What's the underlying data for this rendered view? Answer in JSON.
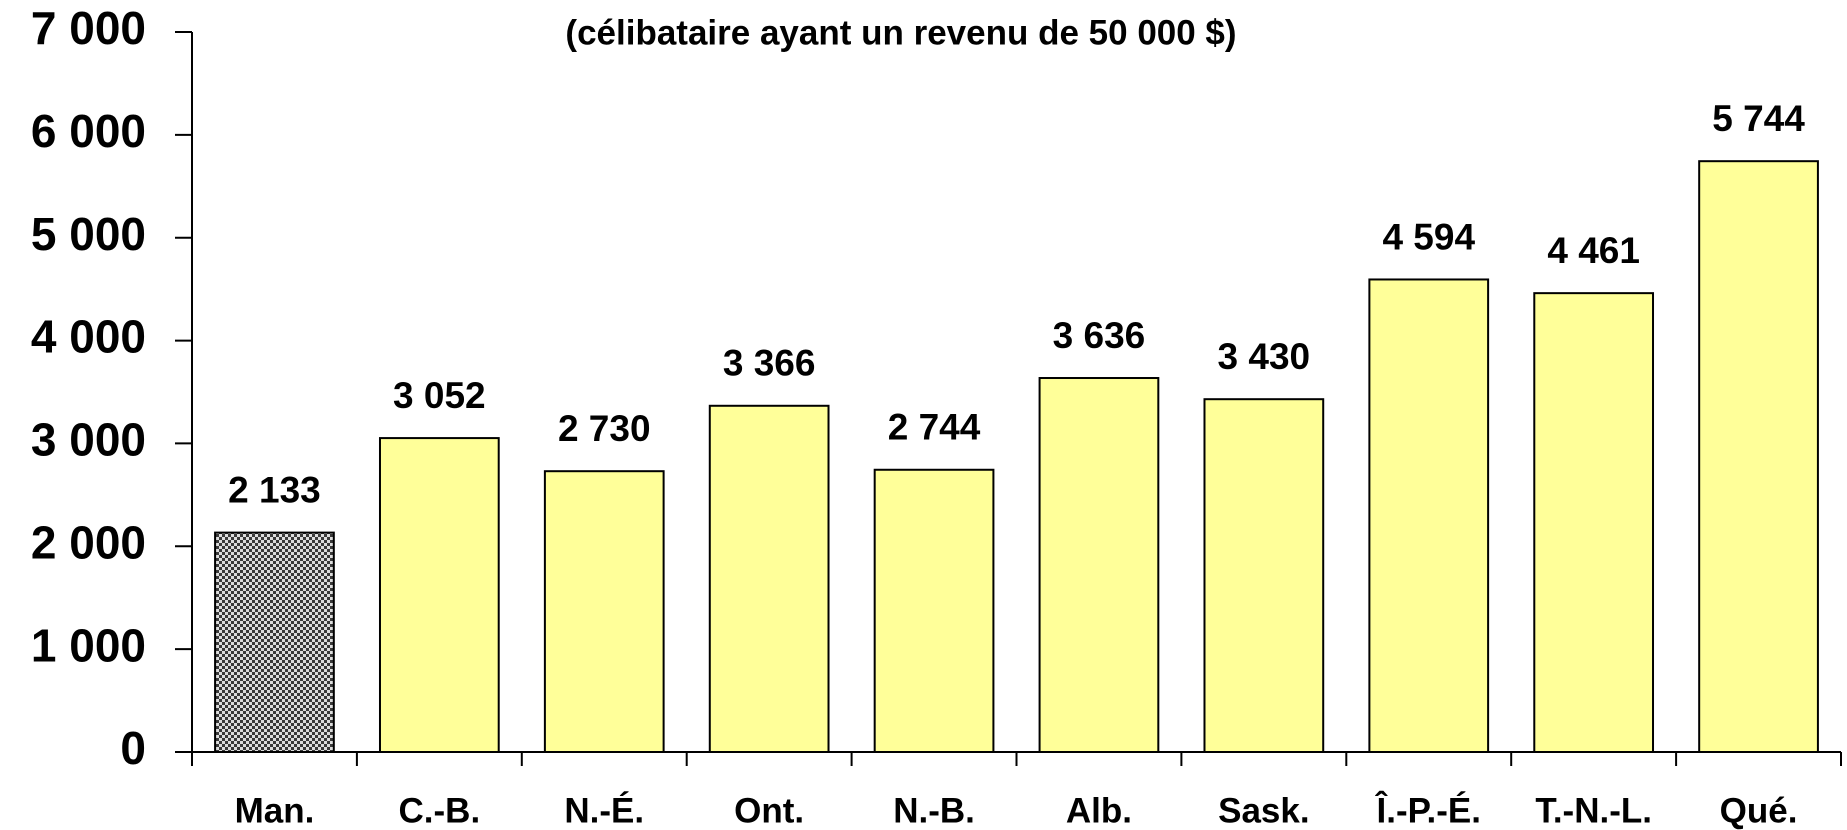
{
  "chart_data": {
    "type": "bar",
    "title": "(célibataire ayant un revenu de 50 000 $)",
    "categories": [
      "Man.",
      "C.-B.",
      "N.-É.",
      "Ont.",
      "N.-B.",
      "Alb.",
      "Sask.",
      "Î.-P.-É.",
      "T.-N.-L.",
      "Qué."
    ],
    "values": [
      2133,
      3052,
      2730,
      3366,
      2744,
      3636,
      3430,
      4594,
      4461,
      5744
    ],
    "value_labels": [
      "2 133",
      "3 052",
      "2 730",
      "3 366",
      "2 744",
      "3 636",
      "3 430",
      "4 594",
      "4 461",
      "5 744"
    ],
    "colors": [
      "#3a3a3a",
      "#ffff99",
      "#ffff99",
      "#ffff99",
      "#ffff99",
      "#ffff99",
      "#ffff99",
      "#ffff99",
      "#ffff99",
      "#ffff99"
    ],
    "ylim": [
      0,
      7000
    ],
    "yticks": [
      0,
      {
        "value": 1000,
        "label": "1 000"
      },
      {
        "value": 2000,
        "label": "2 000"
      },
      {
        "value": 3000,
        "label": "3 000"
      },
      {
        "value": 4000,
        "label": "4 000"
      },
      {
        "value": 5000,
        "label": "5 000"
      },
      {
        "value": 6000,
        "label": "6 000"
      },
      {
        "value": 7000,
        "label": "7 000"
      }
    ],
    "grid": false
  }
}
